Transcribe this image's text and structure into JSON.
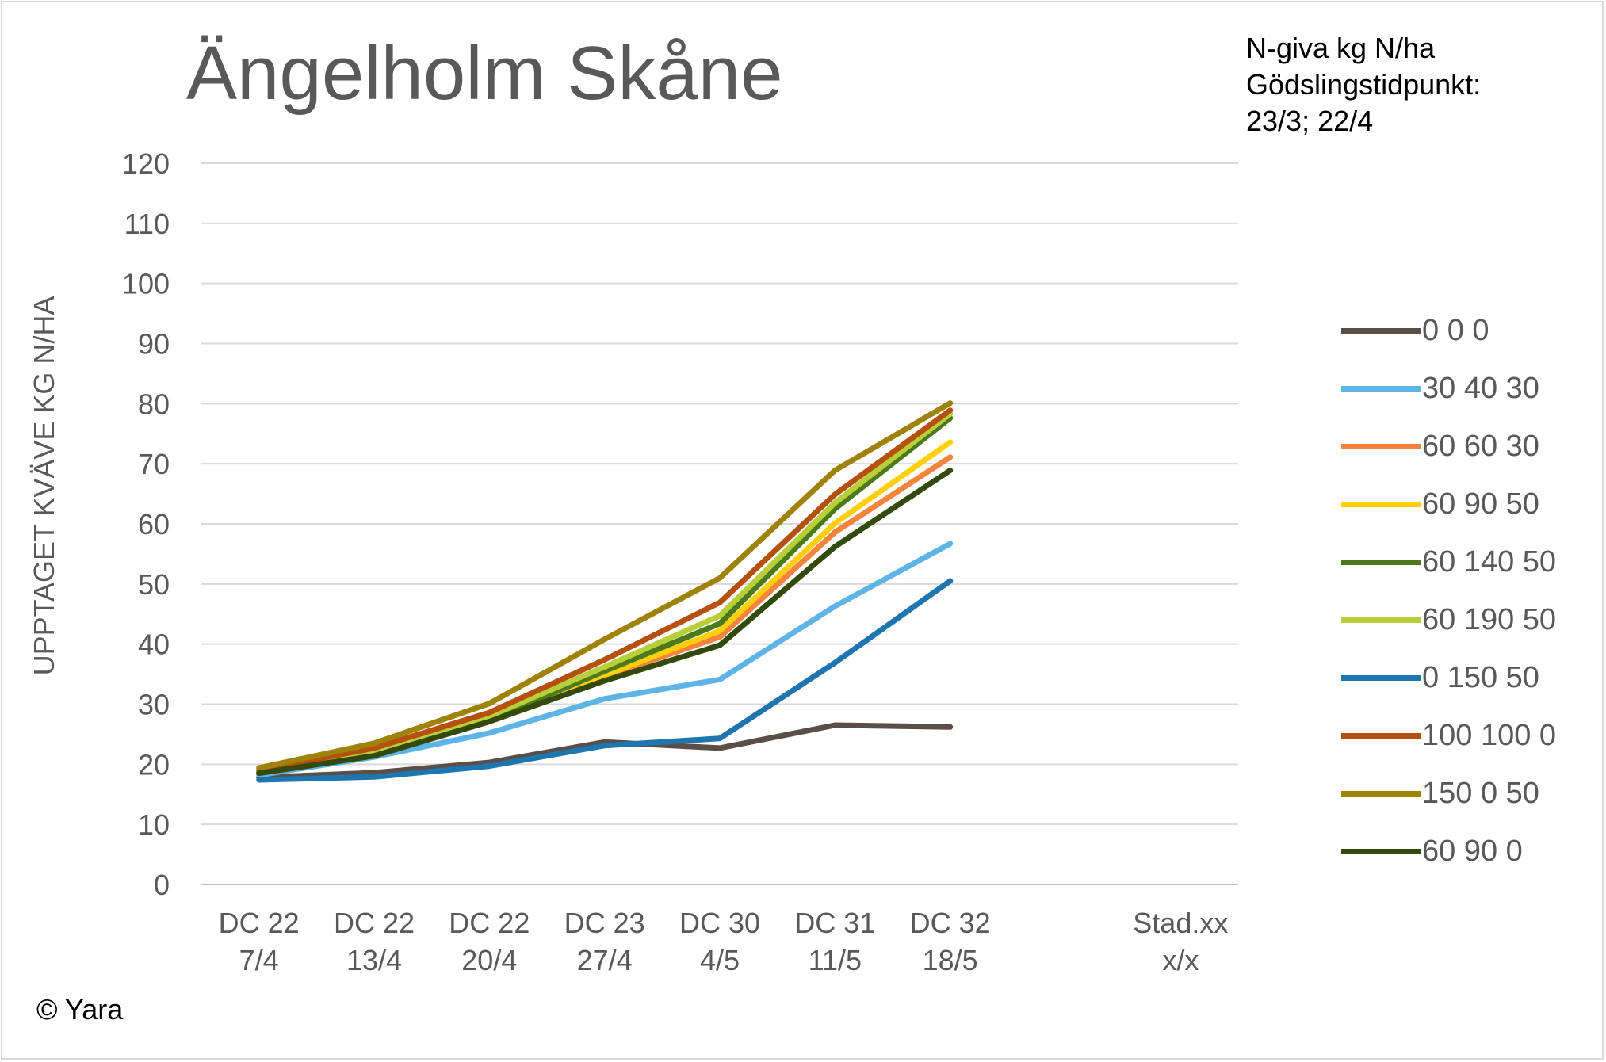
{
  "title": "Ängelholm Skåne",
  "note": {
    "line1": "N-giva kg N/ha",
    "line2": "Gödslingstidpunkt:",
    "line3": "23/3; 22/4"
  },
  "copyright": "© Yara",
  "chart_data": {
    "type": "line",
    "title": "Ängelholm Skåne",
    "ylabel": "UPPTAGET KVÄVE KG N/HA",
    "xlabel": "",
    "ylim": [
      0,
      120
    ],
    "yticks": [
      0,
      10,
      20,
      30,
      40,
      50,
      60,
      70,
      80,
      90,
      100,
      110,
      120
    ],
    "grid": true,
    "legend_position": "right",
    "categories": [
      [
        "DC 22",
        "7/4"
      ],
      [
        "DC 22",
        "13/4"
      ],
      [
        "DC 22",
        "20/4"
      ],
      [
        "DC 23",
        "27/4"
      ],
      [
        "DC 30",
        "4/5"
      ],
      [
        "DC 31",
        "11/5"
      ],
      [
        "DC 32",
        "18/5"
      ],
      [
        "",
        ""
      ],
      [
        "Stad.xx",
        "x/x"
      ]
    ],
    "series": [
      {
        "name": "0 0 0",
        "color": "#5b4e47",
        "values": [
          17.8,
          18.6,
          20.3,
          23.7,
          22.7,
          26.5,
          26.2,
          null,
          null
        ]
      },
      {
        "name": "30 40 30",
        "color": "#5eb4e6",
        "values": [
          18.2,
          21.2,
          25.2,
          30.9,
          34.1,
          46.3,
          56.7,
          null,
          null
        ]
      },
      {
        "name": "60 60 30",
        "color": "#f4843d",
        "values": [
          18.7,
          22.2,
          27.5,
          34.6,
          41.2,
          58.6,
          71.1,
          null,
          null
        ]
      },
      {
        "name": "60 90 50",
        "color": "#ffcf0a",
        "values": [
          18.5,
          21.9,
          27.7,
          34.8,
          42.2,
          60.1,
          73.6,
          null,
          null
        ]
      },
      {
        "name": "60 140 50",
        "color": "#4c7a1a",
        "values": [
          18.6,
          21.8,
          27.4,
          35.5,
          43.4,
          62.5,
          77.6,
          null,
          null
        ]
      },
      {
        "name": "60 190 50",
        "color": "#b8cf3a",
        "values": [
          18.9,
          22.3,
          28.0,
          36.2,
          44.7,
          63.5,
          78.3,
          null,
          null
        ]
      },
      {
        "name": "0 150 50",
        "color": "#1f75ad",
        "values": [
          17.4,
          17.9,
          19.7,
          23.1,
          24.3,
          36.9,
          50.5,
          null,
          null
        ]
      },
      {
        "name": "100 100 0",
        "color": "#b5500f",
        "values": [
          19.0,
          22.7,
          28.6,
          37.4,
          46.9,
          64.9,
          78.9,
          null,
          null
        ]
      },
      {
        "name": "150 0 50",
        "color": "#9f8209",
        "values": [
          19.4,
          23.5,
          30.1,
          40.8,
          51.0,
          68.9,
          80.1,
          null,
          null
        ]
      },
      {
        "name": "60 90 0",
        "color": "#334a0c",
        "values": [
          18.5,
          21.4,
          27.1,
          33.9,
          39.8,
          56.2,
          68.9,
          null,
          null
        ]
      }
    ]
  }
}
